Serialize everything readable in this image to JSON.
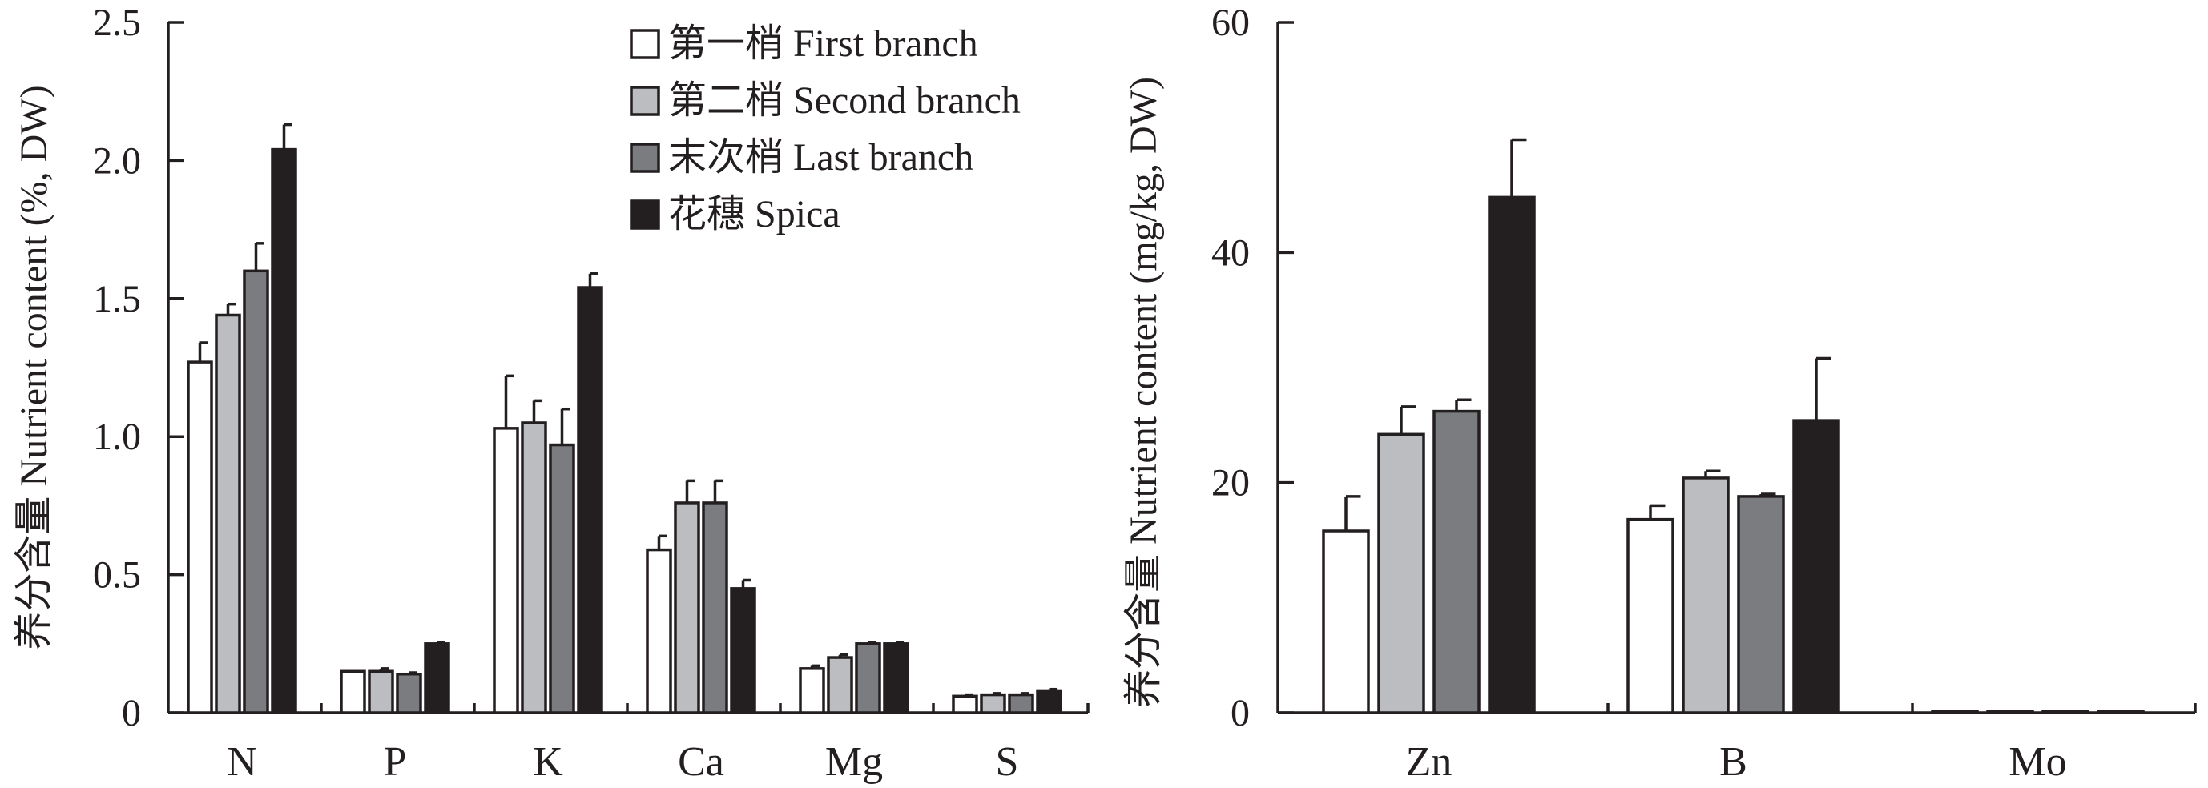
{
  "chart_data": [
    {
      "type": "bar",
      "ylabel": "养分含量 Nutrient content (%, DW)",
      "ylim": [
        0,
        2.5
      ],
      "yticks": [
        "0",
        "0.5",
        "1.0",
        "1.5",
        "2.0",
        "2.5"
      ],
      "categories": [
        "N",
        "P",
        "K",
        "Ca",
        "Mg",
        "S"
      ],
      "series": [
        {
          "name": "第一梢 First branch",
          "color": "#ffffff",
          "values": [
            1.27,
            0.15,
            1.03,
            0.59,
            0.16,
            0.06
          ],
          "errors": [
            0.07,
            0.0,
            0.19,
            0.05,
            0.01,
            0.005
          ]
        },
        {
          "name": "第二梢 Second branch",
          "color": "#bcbdc0",
          "values": [
            1.44,
            0.15,
            1.05,
            0.76,
            0.2,
            0.065
          ],
          "errors": [
            0.04,
            0.01,
            0.08,
            0.08,
            0.01,
            0.005
          ]
        },
        {
          "name": "末次梢 Last branch",
          "color": "#7b7c80",
          "values": [
            1.6,
            0.14,
            0.97,
            0.76,
            0.25,
            0.065
          ],
          "errors": [
            0.1,
            0.005,
            0.13,
            0.08,
            0.005,
            0.005
          ]
        },
        {
          "name": "花穗 Spica",
          "color": "#231f20",
          "values": [
            2.04,
            0.25,
            1.54,
            0.45,
            0.25,
            0.08
          ],
          "errors": [
            0.09,
            0.005,
            0.05,
            0.03,
            0.005,
            0.005
          ]
        }
      ],
      "legend": "top-right"
    },
    {
      "type": "bar",
      "ylabel": "养分含量 Nutrient content (mg/kg, DW)",
      "ylim": [
        0,
        60
      ],
      "yticks": [
        "0",
        "20",
        "40",
        "60"
      ],
      "categories": [
        "Zn",
        "B",
        "Mo"
      ],
      "series": [
        {
          "name": "第一梢 First branch",
          "color": "#ffffff",
          "values": [
            15.8,
            16.8,
            0.15
          ],
          "errors": [
            3.0,
            1.2,
            0.0
          ]
        },
        {
          "name": "第二梢 Second branch",
          "color": "#bcbdc0",
          "values": [
            24.2,
            20.4,
            0.15
          ],
          "errors": [
            2.4,
            0.6,
            0.0
          ]
        },
        {
          "name": "末次梢 Last branch",
          "color": "#7b7c80",
          "values": [
            26.2,
            18.8,
            0.15
          ],
          "errors": [
            1.0,
            0.2,
            0.0
          ]
        },
        {
          "name": "花穗 Spica",
          "color": "#231f20",
          "values": [
            44.8,
            25.4,
            0.15
          ],
          "errors": [
            5.0,
            5.4,
            0.0
          ]
        }
      ]
    }
  ]
}
